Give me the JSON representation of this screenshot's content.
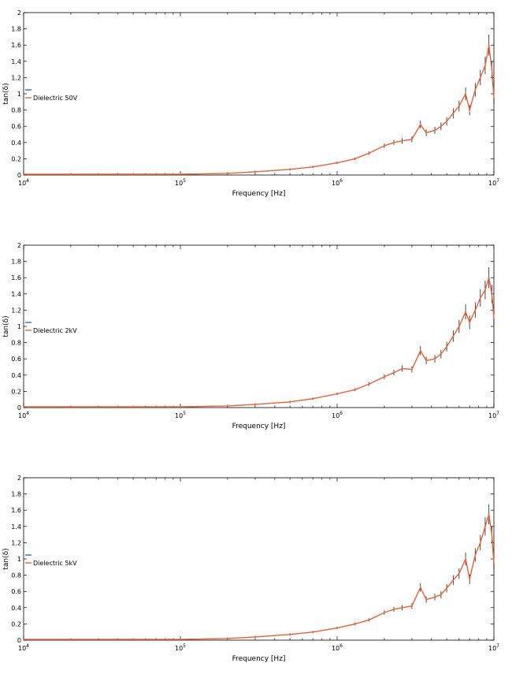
{
  "colors": {
    "measured_line": "#1f77b4",
    "fitted_line": "#e8643a",
    "axes": "#000000",
    "errorbar": "#000000"
  },
  "chart_data": [
    {
      "type": "line",
      "xscale": "log",
      "xlim": [
        10000,
        10000000
      ],
      "ylim": [
        0,
        2
      ],
      "xlabel": "Frequency [Hz]",
      "ylabel": "tan(δ)",
      "xtick_labels": [
        {
          "base": "10",
          "exp": "4"
        },
        {
          "base": "10",
          "exp": "5"
        },
        {
          "base": "10",
          "exp": "6"
        },
        {
          "base": "10",
          "exp": "7"
        }
      ],
      "ytick_labels": [
        "0",
        "0.2",
        "0.4",
        "0.6",
        "0.8",
        "1",
        "1.2",
        "1.4",
        "1.6",
        "1.8",
        "2"
      ],
      "legend": {
        "location": "left",
        "entries": [
          "Dielectric 50V"
        ]
      },
      "x": [
        10000,
        20000,
        50000,
        100000,
        200000,
        300000,
        500000,
        700000,
        1000000,
        1300000,
        1600000,
        2000000,
        2300000,
        2600000,
        3000000,
        3400000,
        3700000,
        4200000,
        4600000,
        5000000,
        5500000,
        6000000,
        6600000,
        7000000,
        7600000,
        8200000,
        8800000,
        9300000,
        9700000,
        10000000
      ],
      "series": [
        {
          "values": [
            0.01,
            0.01,
            0.01,
            0.01,
            0.02,
            0.04,
            0.07,
            0.1,
            0.15,
            0.2,
            0.27,
            0.36,
            0.4,
            0.42,
            0.44,
            0.62,
            0.52,
            0.55,
            0.6,
            0.66,
            0.76,
            0.85,
            1.0,
            0.8,
            1.05,
            1.2,
            1.35,
            1.6,
            1.3,
            0.95
          ]
        }
      ]
    },
    {
      "type": "line",
      "xscale": "log",
      "xlim": [
        10000,
        10000000
      ],
      "ylim": [
        0,
        2
      ],
      "xlabel": "Frequency [Hz]",
      "ylabel": "tan(δ)",
      "xtick_labels": [
        {
          "base": "10",
          "exp": "4"
        },
        {
          "base": "10",
          "exp": "5"
        },
        {
          "base": "10",
          "exp": "6"
        },
        {
          "base": "10",
          "exp": "7"
        }
      ],
      "ytick_labels": [
        "0",
        "0.2",
        "0.4",
        "0.6",
        "0.8",
        "1",
        "1.2",
        "1.4",
        "1.6",
        "1.8",
        "2"
      ],
      "legend": {
        "location": "left",
        "entries": [
          "Dielectric 2kV"
        ]
      },
      "x": [
        10000,
        20000,
        50000,
        100000,
        200000,
        300000,
        500000,
        700000,
        1000000,
        1300000,
        1600000,
        2000000,
        2300000,
        2600000,
        3000000,
        3400000,
        3700000,
        4200000,
        4600000,
        5000000,
        5500000,
        6000000,
        6600000,
        7000000,
        7600000,
        8200000,
        8800000,
        9300000,
        9700000,
        10000000
      ],
      "series": [
        {
          "values": [
            0.01,
            0.01,
            0.01,
            0.01,
            0.02,
            0.04,
            0.07,
            0.11,
            0.17,
            0.22,
            0.29,
            0.38,
            0.43,
            0.48,
            0.47,
            0.7,
            0.58,
            0.6,
            0.66,
            0.75,
            0.88,
            1.0,
            1.18,
            1.05,
            1.2,
            1.35,
            1.45,
            1.6,
            1.4,
            1.1
          ]
        }
      ]
    },
    {
      "type": "line",
      "xscale": "log",
      "xlim": [
        10000,
        10000000
      ],
      "ylim": [
        0,
        2
      ],
      "xlabel": "Frequency [Hz]",
      "ylabel": "tan(δ)",
      "xtick_labels": [
        {
          "base": "10",
          "exp": "4"
        },
        {
          "base": "10",
          "exp": "5"
        },
        {
          "base": "10",
          "exp": "6"
        },
        {
          "base": "10",
          "exp": "7"
        }
      ],
      "ytick_labels": [
        "0",
        "0.2",
        "0.4",
        "0.6",
        "0.8",
        "1",
        "1.2",
        "1.4",
        "1.6",
        "1.8",
        "2"
      ],
      "legend": {
        "location": "left",
        "entries": [
          "Dielectric 5kV"
        ]
      },
      "x": [
        10000,
        20000,
        50000,
        100000,
        200000,
        300000,
        500000,
        700000,
        1000000,
        1300000,
        1600000,
        2000000,
        2300000,
        2600000,
        3000000,
        3400000,
        3700000,
        4200000,
        4600000,
        5000000,
        5500000,
        6000000,
        6600000,
        7000000,
        7600000,
        8200000,
        8800000,
        9300000,
        9700000,
        10000000
      ],
      "series": [
        {
          "values": [
            0.01,
            0.01,
            0.01,
            0.01,
            0.02,
            0.04,
            0.07,
            0.1,
            0.15,
            0.2,
            0.25,
            0.34,
            0.38,
            0.4,
            0.42,
            0.65,
            0.5,
            0.53,
            0.56,
            0.64,
            0.74,
            0.82,
            1.0,
            0.75,
            1.05,
            1.2,
            1.4,
            1.55,
            1.3,
            0.95
          ]
        }
      ]
    }
  ]
}
